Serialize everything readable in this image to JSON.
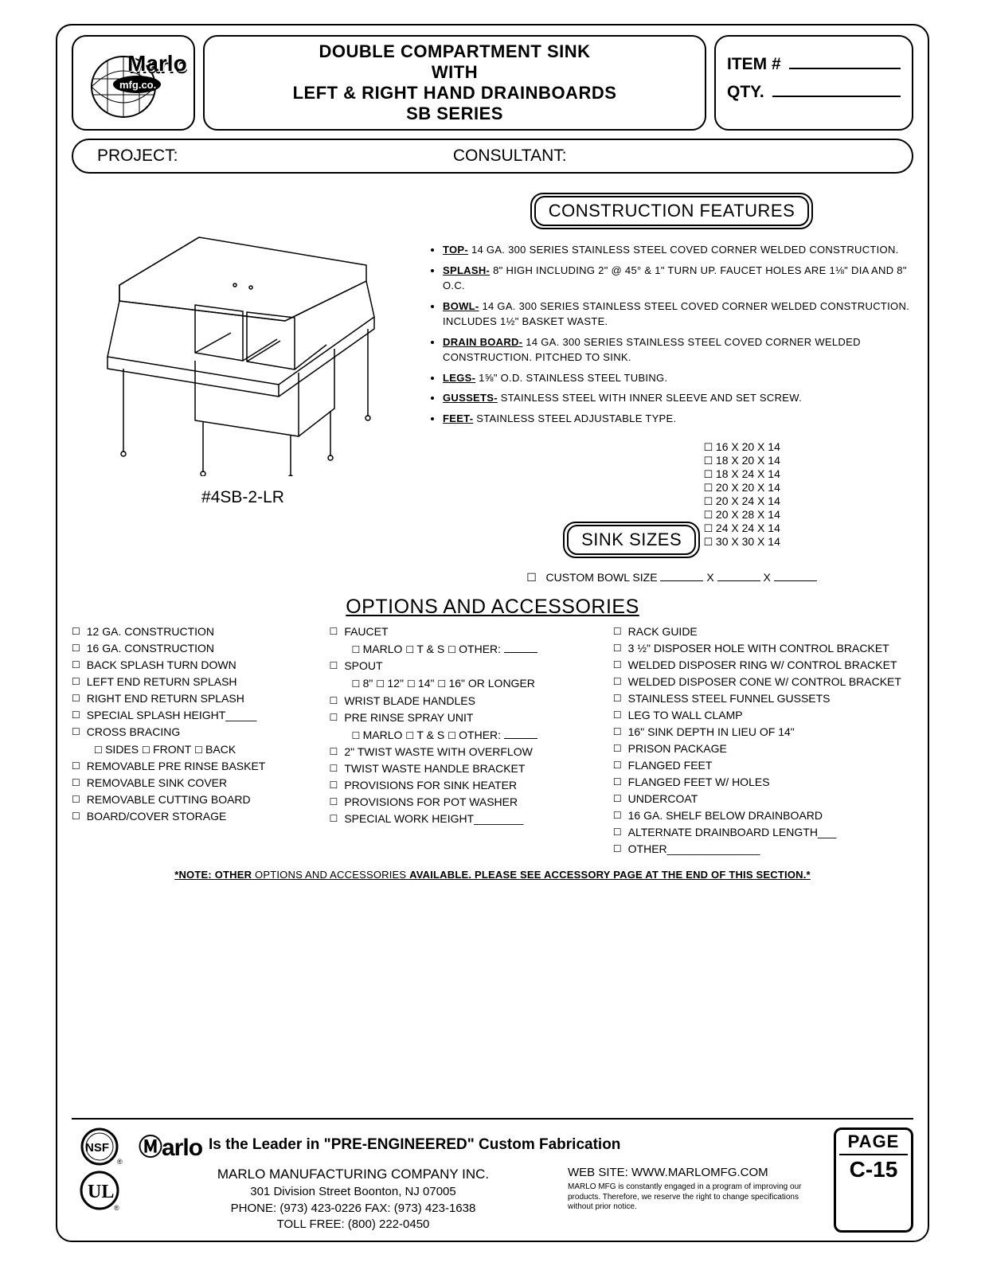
{
  "header": {
    "title_l1": "DOUBLE COMPARTMENT SINK",
    "title_l2": "WITH",
    "title_l3": "LEFT & RIGHT HAND DRAINBOARDS",
    "title_l4": "SB SERIES",
    "item_label": "ITEM #",
    "qty_label": "QTY.",
    "project_label": "PROJECT:",
    "consultant_label": "CONSULTANT:"
  },
  "model": "#4SB-2-LR",
  "construction_features": {
    "title": "CONSTRUCTION FEATURES",
    "items": [
      {
        "label": "TOP-",
        "text": " 14 GA. 300 SERIES STAINLESS STEEL COVED CORNER WELDED CONSTRUCTION."
      },
      {
        "label": "SPLASH-",
        "text": " 8\" HIGH INCLUDING 2\" @ 45° & 1\" TURN UP. FAUCET HOLES ARE 1⅛\" DIA AND 8\" O.C."
      },
      {
        "label": "BOWL-",
        "text": " 14 GA. 300 SERIES STAINLESS STEEL COVED CORNER WELDED CONSTRUCTION. INCLUDES 1½\" BASKET WASTE."
      },
      {
        "label": "DRAIN BOARD-",
        "text": " 14 GA. 300 SERIES STAINLESS STEEL COVED CORNER WELDED CONSTRUCTION. PITCHED TO SINK."
      },
      {
        "label": "LEGS-",
        "text": " 1⅝\" O.D. STAINLESS STEEL TUBING."
      },
      {
        "label": "GUSSETS-",
        "text": " STAINLESS STEEL WITH INNER SLEEVE AND SET SCREW."
      },
      {
        "label": "FEET-",
        "text": " STAINLESS STEEL ADJUSTABLE TYPE."
      }
    ]
  },
  "sink_sizes": {
    "title": "SINK SIZES",
    "sizes": [
      "16 X 20 X 14",
      "18 X 20 X 14",
      "18 X 24 X 14",
      "20 X 20 X 14",
      "20 X 24 X 14",
      "20 X 28 X 14",
      "24 X 24 X 14",
      "30 X 30 X 14"
    ],
    "custom_label": "CUSTOM BOWL SIZE"
  },
  "options": {
    "title": "OPTIONS AND ACCESSORIES",
    "col1": [
      "12 GA. CONSTRUCTION",
      "16 GA. CONSTRUCTION",
      "BACK SPLASH TURN DOWN",
      "LEFT END RETURN SPLASH",
      "RIGHT END RETURN SPLASH",
      "SPECIAL SPLASH HEIGHT_____",
      "CROSS BRACING",
      "REMOVABLE PRE RINSE BASKET",
      "REMOVABLE SINK COVER",
      "REMOVABLE CUTTING BOARD",
      "BOARD/COVER STORAGE"
    ],
    "cross_sub": [
      "SIDES",
      "FRONT",
      "BACK"
    ],
    "col2_faucet": "FAUCET",
    "col2_faucet_sub": [
      "MARLO",
      "T & S",
      "OTHER:"
    ],
    "col2_spout": "SPOUT",
    "col2_spout_sub": [
      "8\"",
      "12\"",
      "14\"",
      "16\" OR LONGER"
    ],
    "col2_rest": [
      "WRIST BLADE HANDLES",
      "PRE RINSE SPRAY UNIT"
    ],
    "col2_pre_sub": [
      "MARLO",
      "T & S",
      "OTHER:"
    ],
    "col2_rest2": [
      "2\" TWIST WASTE WITH OVERFLOW",
      "TWIST WASTE HANDLE BRACKET",
      "PROVISIONS FOR SINK HEATER",
      "PROVISIONS FOR POT WASHER",
      "SPECIAL WORK HEIGHT________"
    ],
    "col3": [
      "RACK GUIDE",
      "3 ½\" DISPOSER HOLE WITH CONTROL BRACKET",
      "WELDED DISPOSER RING W/ CONTROL BRACKET",
      "WELDED DISPOSER CONE W/ CONTROL BRACKET",
      "STAINLESS STEEL FUNNEL GUSSETS",
      "LEG TO WALL CLAMP",
      "16\" SINK DEPTH IN LIEU OF 14\"",
      "PRISON PACKAGE",
      "FLANGED FEET",
      "FLANGED FEET W/ HOLES",
      "UNDERCOAT",
      "16 GA. SHELF BELOW DRAINBOARD",
      "ALTERNATE DRAINBOARD LENGTH___",
      "OTHER_______________"
    ]
  },
  "note_bold1": "*NOTE: OTHER",
  "note_norm": " OPTIONS AND ACCESSORIES ",
  "note_bold2": "AVAILABLE. PLEASE SEE ACCESSORY PAGE AT THE END OF THIS SECTION.*",
  "footer": {
    "brand": "Ⓜarlo",
    "leader": "Is the Leader in \"PRE-ENGINEERED\" Custom Fabrication",
    "company": "MARLO MANUFACTURING COMPANY INC.",
    "addr": "301 Division Street    Boonton, NJ 07005",
    "phone": "PHONE: (973) 423-0226   FAX: (973) 423-1638",
    "toll": "TOLL FREE: (800) 222-0450",
    "website": "WEB SITE: WWW.MARLOMFG.COM",
    "fine": "MARLO MFG is constantly engaged in a program of improving our products. Therefore, we reserve the right  to change specifications without prior notice.",
    "page_label": "PAGE",
    "page_num": "C-15"
  }
}
